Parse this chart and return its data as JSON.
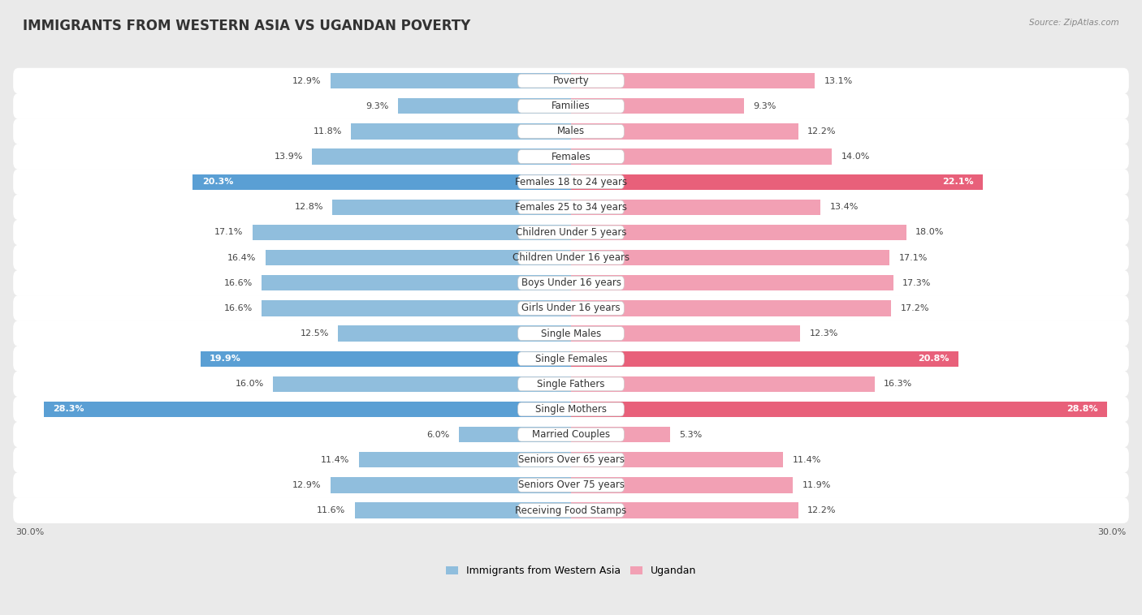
{
  "title": "IMMIGRANTS FROM WESTERN ASIA VS UGANDAN POVERTY",
  "source": "Source: ZipAtlas.com",
  "categories": [
    "Poverty",
    "Families",
    "Males",
    "Females",
    "Females 18 to 24 years",
    "Females 25 to 34 years",
    "Children Under 5 years",
    "Children Under 16 years",
    "Boys Under 16 years",
    "Girls Under 16 years",
    "Single Males",
    "Single Females",
    "Single Fathers",
    "Single Mothers",
    "Married Couples",
    "Seniors Over 65 years",
    "Seniors Over 75 years",
    "Receiving Food Stamps"
  ],
  "left_values": [
    12.9,
    9.3,
    11.8,
    13.9,
    20.3,
    12.8,
    17.1,
    16.4,
    16.6,
    16.6,
    12.5,
    19.9,
    16.0,
    28.3,
    6.0,
    11.4,
    12.9,
    11.6
  ],
  "right_values": [
    13.1,
    9.3,
    12.2,
    14.0,
    22.1,
    13.4,
    18.0,
    17.1,
    17.3,
    17.2,
    12.3,
    20.8,
    16.3,
    28.8,
    5.3,
    11.4,
    11.9,
    12.2
  ],
  "left_color_normal": "#90bedd",
  "right_color_normal": "#f2a0b4",
  "left_color_highlight": "#5a9fd4",
  "right_color_highlight": "#e8607a",
  "highlight_indices": [
    4,
    11,
    13
  ],
  "left_label": "Immigrants from Western Asia",
  "right_label": "Ugandan",
  "x_max": 30.0,
  "bg_color": "#eaeaea",
  "row_bg_color": "#ffffff",
  "title_fontsize": 12,
  "label_fontsize": 8.5,
  "value_fontsize": 8,
  "cat_fontsize": 8.5
}
